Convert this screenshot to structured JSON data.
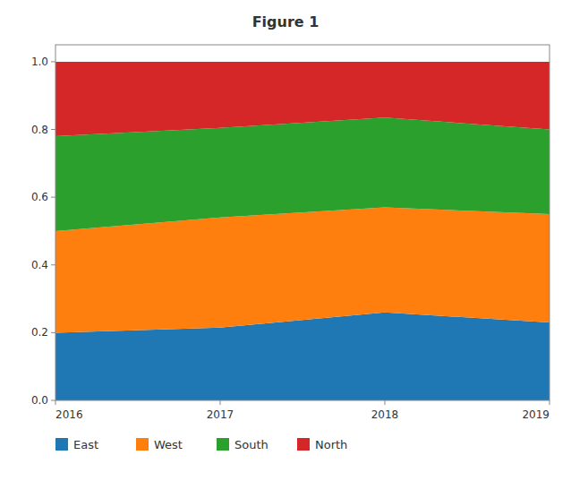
{
  "chart_data": {
    "type": "area",
    "title": "Figure 1",
    "stacked": true,
    "x": [
      2016,
      2017,
      2018,
      2019
    ],
    "series": [
      {
        "name": "East",
        "color": "#1f77b4",
        "values": [
          0.2,
          0.215,
          0.26,
          0.23
        ]
      },
      {
        "name": "West",
        "color": "#ff7f0e",
        "values": [
          0.3,
          0.325,
          0.31,
          0.32
        ]
      },
      {
        "name": "South",
        "color": "#2ca02c",
        "values": [
          0.28,
          0.265,
          0.265,
          0.25
        ]
      },
      {
        "name": "North",
        "color": "#d62728",
        "values": [
          0.22,
          0.195,
          0.165,
          0.2
        ]
      }
    ],
    "xlim": [
      2016,
      2019
    ],
    "xticks": [
      2016,
      2017,
      2018,
      2019
    ],
    "ylim": [
      0.0,
      1.05
    ],
    "yticks": [
      {
        "value": 0.0,
        "label": "0.0"
      },
      0.2,
      0.4,
      0.6,
      0.8,
      {
        "value": 1.0,
        "label": "1.0"
      }
    ],
    "grid": false,
    "legend": "lower left"
  }
}
